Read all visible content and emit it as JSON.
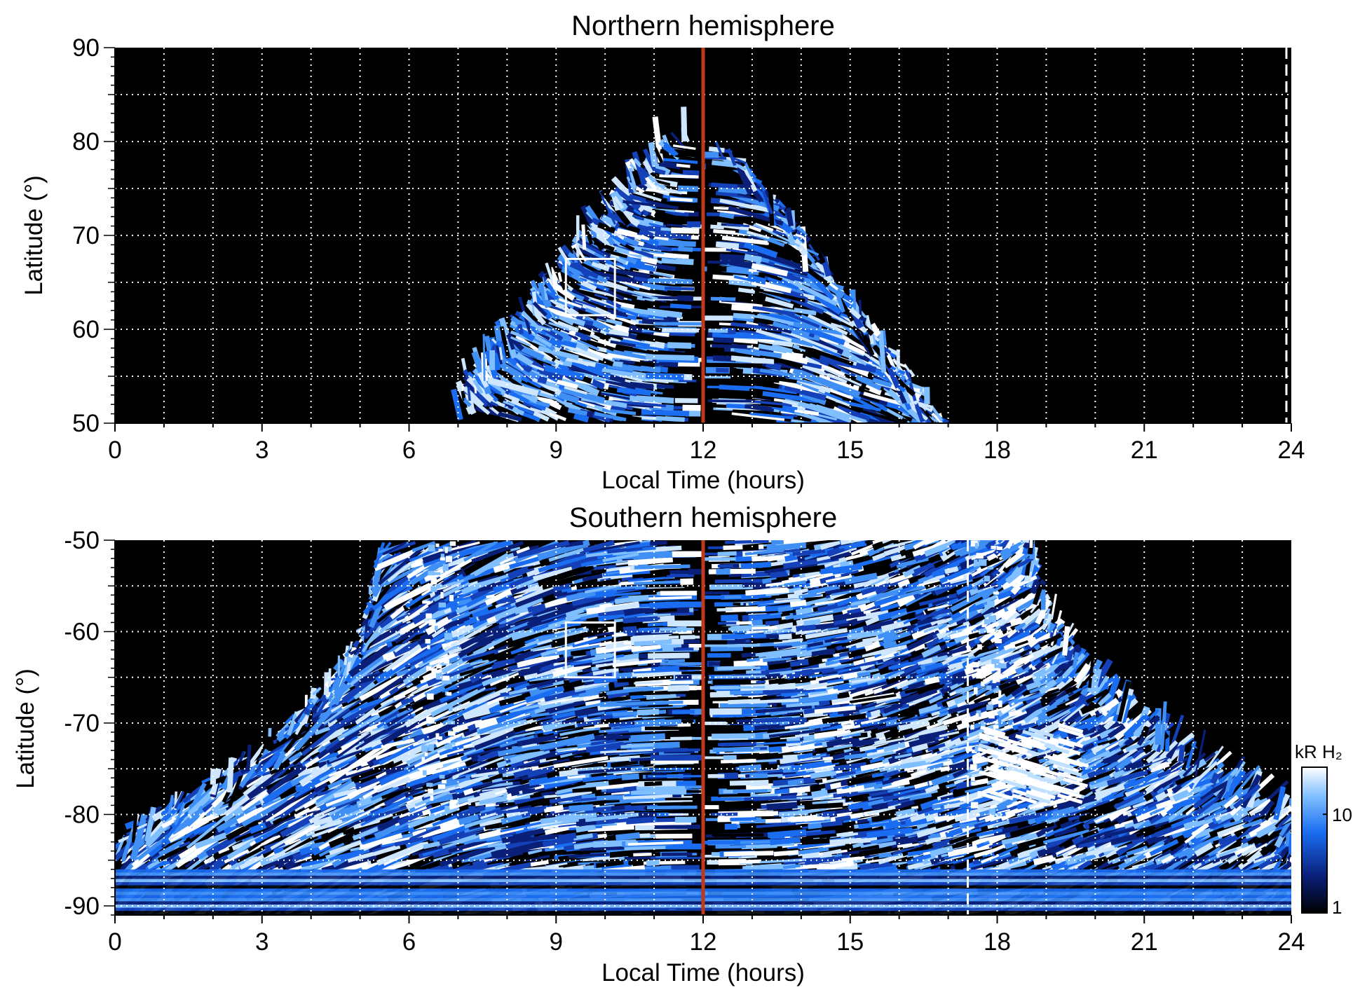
{
  "chart_data": [
    {
      "type": "heatmap",
      "title": "Northern hemisphere",
      "xlabel": "Local Time (hours)",
      "ylabel": "Latitude (°)",
      "xlim": [
        0,
        24
      ],
      "ylim": [
        50,
        90
      ],
      "xticks": [
        0,
        3,
        6,
        9,
        12,
        15,
        18,
        21,
        24
      ],
      "yticks": [
        50,
        60,
        70,
        80,
        90
      ],
      "grid": true,
      "noon_line": {
        "x": 12,
        "color": "#c0391b"
      },
      "dashed_line": {
        "x": 23.9
      },
      "highlight_box": {
        "x": [
          9.2,
          10.2
        ],
        "y": [
          61.5,
          67.5
        ]
      },
      "coverage": {
        "lt_min_at_50": 7.0,
        "lt_max_at_50": 17.3,
        "lat_max_at_noon": 80
      },
      "colormap": "black-blue-white",
      "background": "#000000"
    },
    {
      "type": "heatmap",
      "title": "Southern hemisphere",
      "xlabel": "Local Time (hours)",
      "ylabel": "Latitude (°)",
      "xlim": [
        0,
        24
      ],
      "ylim": [
        -91,
        -50
      ],
      "xticks": [
        0,
        3,
        6,
        9,
        12,
        15,
        18,
        21,
        24
      ],
      "yticks": [
        -90,
        -80,
        -70,
        -60,
        -50
      ],
      "grid": true,
      "noon_line": {
        "x": 12,
        "color": "#c0391b"
      },
      "dashed_line": {
        "x": 17.4
      },
      "highlight_box": {
        "x": [
          9.2,
          10.2
        ],
        "y": [
          -65,
          -59
        ]
      },
      "coverage": {
        "lt_min_at_m50": 5.3,
        "lt_max_at_m50": 18.7,
        "lt_min_at_m81": 0.0,
        "lt_max_at_m81": 24.0
      },
      "bright_bands": [
        6.6,
        17.8
      ],
      "colormap": "black-blue-white",
      "background": "#000000"
    }
  ],
  "colorbar": {
    "label": "kR H₂",
    "ticks": [
      "1",
      "10"
    ],
    "tick_values": [
      1,
      10
    ],
    "range": [
      1,
      30
    ],
    "scale": "log",
    "colors": [
      "#000000",
      "#0a1f78",
      "#1a6cf0",
      "#7fbfff",
      "#ffffff"
    ]
  }
}
